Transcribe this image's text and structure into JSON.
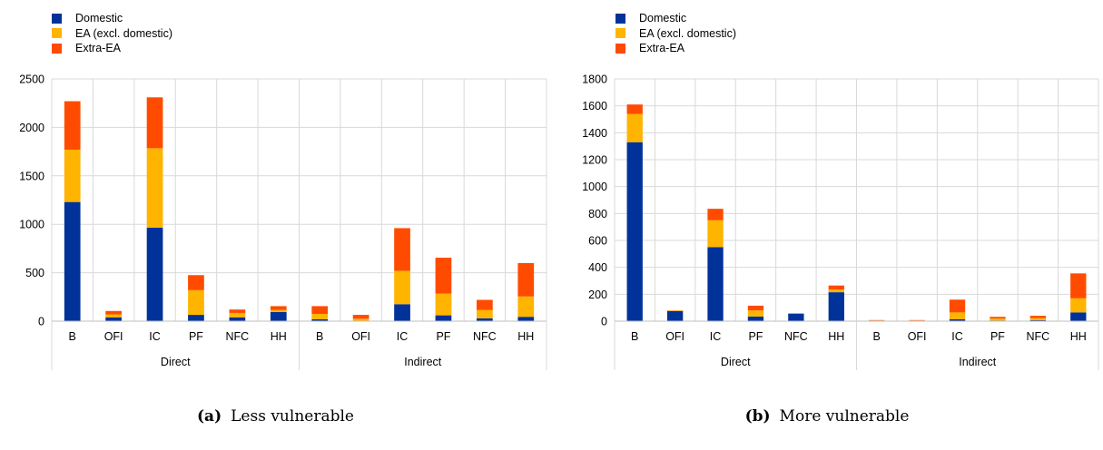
{
  "colors": {
    "domestic": "#003299",
    "ea": "#ffb400",
    "extra": "#ff4b00",
    "grid": "#d9d9d9"
  },
  "chart_data": [
    {
      "type": "bar",
      "stacked": true,
      "caption_label": "(a)",
      "caption_text": "Less vulnerable",
      "categories": [
        "B",
        "OFI",
        "IC",
        "PF",
        "NFC",
        "HH",
        "B",
        "OFI",
        "IC",
        "PF",
        "NFC",
        "HH"
      ],
      "groups": [
        {
          "label": "Direct"
        },
        {
          "label": "Indirect"
        }
      ],
      "ylim": [
        0,
        2500
      ],
      "yticks": [
        "0",
        "500",
        "1000",
        "1500",
        "2000",
        "2500"
      ],
      "legend_position": "top-left",
      "grid": true,
      "series": [
        {
          "name": "Domestic",
          "values": [
            1230,
            40,
            965,
            65,
            40,
            95,
            20,
            5,
            175,
            60,
            30,
            45
          ]
        },
        {
          "name": "EA (excl. domestic)",
          "values": [
            540,
            30,
            820,
            255,
            45,
            20,
            55,
            20,
            345,
            225,
            85,
            210
          ]
        },
        {
          "name": "Extra-EA",
          "values": [
            500,
            35,
            525,
            155,
            35,
            40,
            80,
            40,
            440,
            370,
            105,
            345
          ]
        }
      ]
    },
    {
      "type": "bar",
      "stacked": true,
      "caption_label": "(b)",
      "caption_text": "More vulnerable",
      "categories": [
        "B",
        "OFI",
        "IC",
        "PF",
        "NFC",
        "HH",
        "B",
        "OFI",
        "IC",
        "PF",
        "NFC",
        "HH"
      ],
      "groups": [
        {
          "label": "Direct"
        },
        {
          "label": "Indirect"
        }
      ],
      "ylim": [
        0,
        1800
      ],
      "yticks": [
        "0",
        "200",
        "400",
        "600",
        "800",
        "1000",
        "1200",
        "1400",
        "1600",
        "1800"
      ],
      "legend_position": "top-left",
      "grid": true,
      "series": [
        {
          "name": "Domestic",
          "values": [
            1330,
            75,
            550,
            35,
            55,
            215,
            2,
            2,
            15,
            5,
            8,
            65
          ]
        },
        {
          "name": "EA (excl. domestic)",
          "values": [
            210,
            3,
            200,
            45,
            3,
            20,
            3,
            3,
            50,
            15,
            15,
            105
          ]
        },
        {
          "name": "Extra-EA",
          "values": [
            70,
            2,
            85,
            35,
            2,
            30,
            3,
            3,
            95,
            12,
            17,
            185
          ]
        }
      ]
    }
  ]
}
